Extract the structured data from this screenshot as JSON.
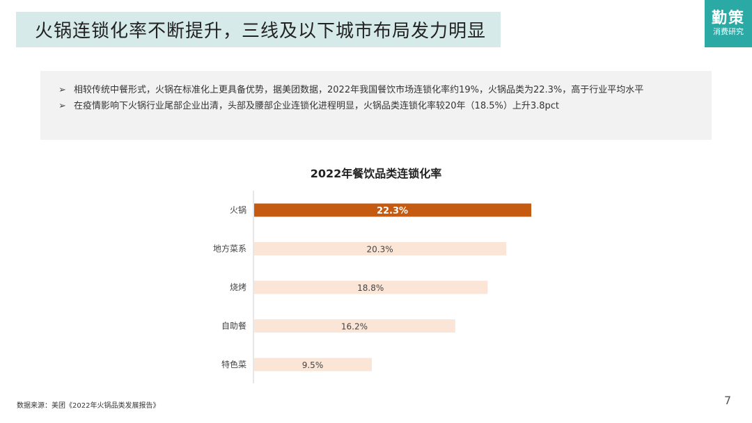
{
  "header": {
    "title": "火锅连锁化率不断提升，三线及以下城市布局发力明显",
    "logo_main": "勤策",
    "logo_sub": "消费研究"
  },
  "summary": {
    "bullets": [
      "相较传统中餐形式，火锅在标准化上更具备优势，据美团数据，2022年我国餐饮市场连锁化率约19%，火锅品类为22.3%，高于行业平均水平",
      "在疫情影响下火锅行业尾部企业出清，头部及腰部企业连锁化进程明显，火锅品类连锁化率较20年（18.5%）上升3.8pct"
    ],
    "bullet_marker": "➢"
  },
  "chart_data": {
    "type": "bar",
    "orientation": "horizontal",
    "title": "2022年餐饮品类连锁化率",
    "categories": [
      "火锅",
      "地方菜系",
      "烧烤",
      "自助餐",
      "特色菜"
    ],
    "values": [
      22.3,
      20.3,
      18.8,
      16.2,
      9.5
    ],
    "value_labels": [
      "22.3%",
      "20.3%",
      "18.8%",
      "16.2%",
      "9.5%"
    ],
    "xlabel": "",
    "ylabel": "",
    "xlim": [
      0,
      22.3
    ],
    "grid": false,
    "legend": "none",
    "colors": {
      "highlight": "#c55a11",
      "default": "#fbe5d6"
    },
    "highlight_index": 0
  },
  "footer": {
    "source": "数据来源：美团《2022年火锅品类发展报告》",
    "page_number": "7"
  }
}
